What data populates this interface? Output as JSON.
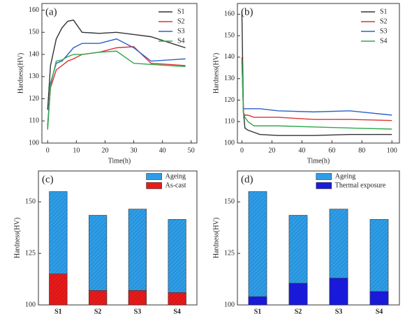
{
  "chart_data": [
    {
      "type": "line",
      "title": "(a)",
      "x_label": "Time(h)",
      "y_label": "Hardness(HV)",
      "x": [
        0,
        1,
        3,
        5,
        7,
        9,
        12,
        18,
        24,
        30,
        36,
        48
      ],
      "xlim": [
        -2,
        52
      ],
      "xticks": [
        0,
        10,
        20,
        30,
        40,
        50
      ],
      "ylim": [
        100,
        163
      ],
      "yticks": [
        100,
        110,
        120,
        130,
        140,
        150,
        160
      ],
      "legend": "upper right",
      "series": [
        {
          "name": "S1",
          "color": "#333333",
          "values": [
            115,
            135,
            147,
            152,
            155,
            155.5,
            150,
            149.5,
            150,
            149,
            148,
            143
          ]
        },
        {
          "name": "S2",
          "color": "#e03030",
          "values": [
            108,
            125,
            133,
            135,
            137,
            138,
            140,
            141,
            143,
            143.5,
            136,
            135
          ]
        },
        {
          "name": "S3",
          "color": "#2a62c8",
          "values": [
            107,
            127,
            136,
            137,
            140,
            143,
            145,
            145,
            147,
            143,
            137,
            138
          ]
        },
        {
          "name": "S4",
          "color": "#2ea84a",
          "values": [
            106,
            126,
            137,
            137.5,
            139,
            140,
            140,
            141,
            141.5,
            136,
            135.5,
            134.5
          ]
        }
      ]
    },
    {
      "type": "line",
      "title": "(b)",
      "x_label": "Time(h)",
      "y_label": "Hardness(HV)",
      "x": [
        0,
        1,
        2,
        4,
        8,
        12,
        24,
        48,
        72,
        100
      ],
      "xlim": [
        -3,
        105
      ],
      "xticks": [
        0,
        20,
        40,
        60,
        80,
        100
      ],
      "ylim": [
        100,
        165
      ],
      "yticks": [
        100,
        110,
        120,
        130,
        140,
        150,
        160
      ],
      "legend": "upper right",
      "series": [
        {
          "name": "S1",
          "color": "#333333",
          "values": [
            160,
            115,
            107,
            106,
            105,
            104,
            103.5,
            103.5,
            104,
            104
          ]
        },
        {
          "name": "S2",
          "color": "#e03030",
          "values": [
            140,
            114,
            113,
            113,
            112,
            112,
            112,
            111,
            111,
            110.5
          ]
        },
        {
          "name": "S3",
          "color": "#2a62c8",
          "values": [
            138,
            116,
            116,
            116,
            116,
            116,
            115,
            114.5,
            115,
            113
          ]
        },
        {
          "name": "S4",
          "color": "#2ea84a",
          "values": [
            139,
            114,
            112,
            110,
            108,
            108,
            108,
            107.5,
            107,
            106.5
          ]
        }
      ]
    },
    {
      "type": "bar",
      "title": "(c)",
      "y_label": "Hardness(HV)",
      "overlay": true,
      "categories": [
        "S1",
        "S2",
        "S3",
        "S4"
      ],
      "ylim": [
        100,
        165
      ],
      "yticks": [
        100,
        125,
        150
      ],
      "legend": "upper right",
      "series": [
        {
          "name": "Ageing",
          "color": "#2e9de8",
          "values": [
            155,
            143.5,
            146.5,
            141.5
          ]
        },
        {
          "name": "As-cast",
          "color": "#e81a1a",
          "values": [
            115,
            107,
            107,
            106
          ]
        }
      ]
    },
    {
      "type": "bar",
      "title": "(d)",
      "y_label": "Hardness(HV)",
      "overlay": true,
      "categories": [
        "S1",
        "S2",
        "S3",
        "S4"
      ],
      "ylim": [
        100,
        165
      ],
      "yticks": [
        100,
        125,
        150
      ],
      "legend": "upper right",
      "series": [
        {
          "name": "Ageing",
          "color": "#2e9de8",
          "values": [
            155,
            143.5,
            146.5,
            141.5
          ]
        },
        {
          "name": "Thermal exposure",
          "color": "#1a1ae0",
          "values": [
            104,
            110.5,
            113,
            106.5
          ]
        }
      ]
    }
  ]
}
